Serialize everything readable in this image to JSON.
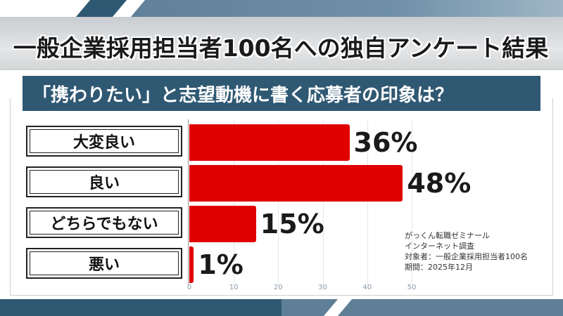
{
  "headline": "一般企業採用担当者100名への独自アンケート結果",
  "question": "「携わりたい」と志望動機に書く応募者の印象は？",
  "chart_data": {
    "type": "bar",
    "orientation": "horizontal",
    "categories": [
      "大変良い",
      "良い",
      "どちらでもない",
      "悪い"
    ],
    "values": [
      36,
      48,
      15,
      1
    ],
    "value_labels": [
      "36%",
      "48%",
      "15%",
      "1%"
    ],
    "xlim": [
      0,
      50
    ],
    "xticks": [
      "0",
      "10",
      "20",
      "30",
      "40",
      "50"
    ],
    "bar_color": "#e00000"
  },
  "source_note": [
    "がっくん転職ゼミナール",
    "インターネット調査",
    "対象者：一般企業採用担当者100名",
    "期間：2025年12月"
  ],
  "colors": {
    "question_bar": "#2f5873",
    "bar": "#e00000"
  }
}
